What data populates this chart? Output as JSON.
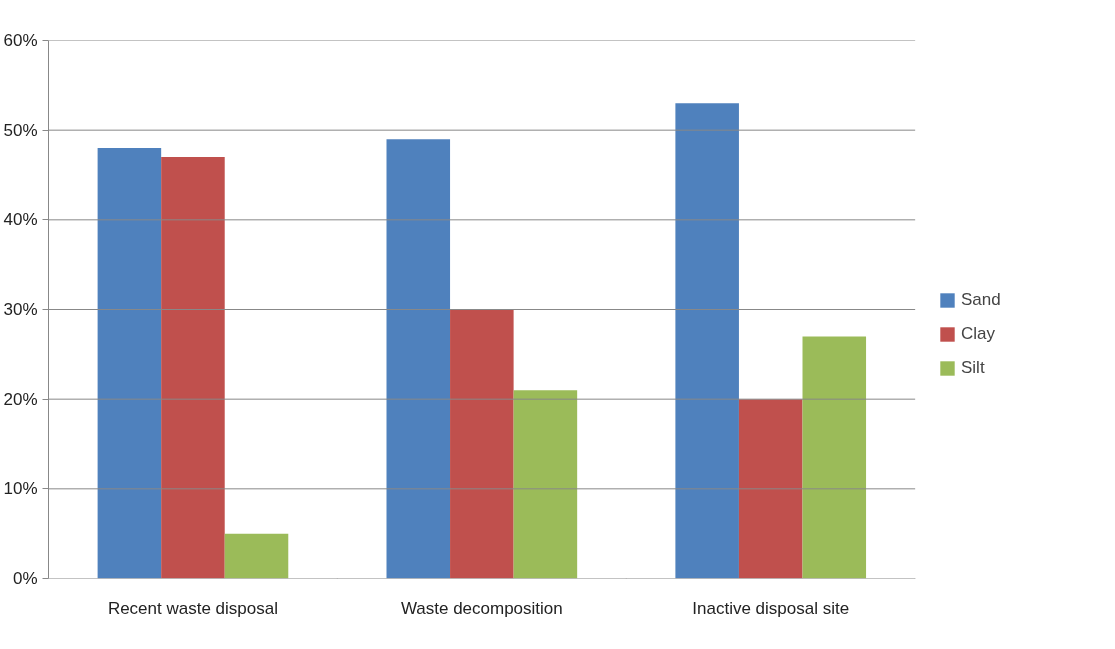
{
  "chart_data": {
    "type": "bar",
    "categories": [
      "Recent waste disposal",
      "Waste decomposition",
      "Inactive disposal site"
    ],
    "series": [
      {
        "name": "Sand",
        "color": "#4f81bd",
        "values": [
          48,
          49,
          53
        ]
      },
      {
        "name": "Clay",
        "color": "#c0504d",
        "values": [
          47,
          30,
          20
        ]
      },
      {
        "name": "Silt",
        "color": "#9bbb59",
        "values": [
          5,
          21,
          27
        ]
      }
    ],
    "ylim": [
      0,
      60
    ],
    "yticks": [
      {
        "value": 0,
        "label": "0%"
      },
      {
        "value": 10,
        "label": "10%"
      },
      {
        "value": 20,
        "label": "20%"
      },
      {
        "value": 30,
        "label": "30%"
      },
      {
        "value": 40,
        "label": "40%"
      },
      {
        "value": 50,
        "label": "50%"
      },
      {
        "value": 60,
        "label": "60%"
      }
    ],
    "grid": "y",
    "legend": "right"
  }
}
